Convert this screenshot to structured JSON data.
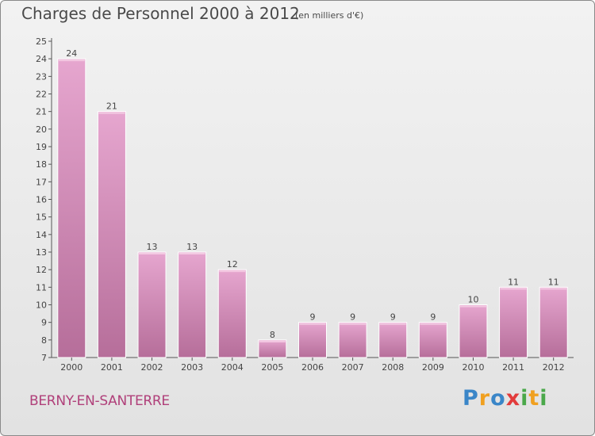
{
  "chart_data": {
    "type": "bar",
    "title": "Charges de Personnel 2000 à 2012",
    "subtitle": "(en milliers d'€)",
    "categories": [
      "2000",
      "2001",
      "2002",
      "2003",
      "2004",
      "2005",
      "2006",
      "2007",
      "2008",
      "2009",
      "2010",
      "2011",
      "2012"
    ],
    "values": [
      24,
      21,
      13,
      13,
      12,
      8,
      9,
      9,
      9,
      9,
      10,
      11,
      11
    ],
    "yticks": [
      7,
      8,
      9,
      10,
      11,
      12,
      13,
      14,
      15,
      16,
      17,
      18,
      19,
      20,
      21,
      22,
      23,
      24,
      25
    ],
    "ylim": [
      7,
      25
    ],
    "grid": false,
    "bar_color": "#d98fbb",
    "xlabel": "",
    "ylabel": ""
  },
  "footer": {
    "commune": "BERNY-EN-SANTERRE",
    "logo_text": "Proxiti",
    "logo_letters": [
      "P",
      "r",
      "o",
      "x",
      "i",
      "t",
      "i"
    ],
    "logo_colors": [
      "#3a86c8",
      "#f0a020",
      "#3a86c8",
      "#e23b3b",
      "#4aa84a",
      "#f0a020",
      "#4aa84a"
    ]
  },
  "colors": {
    "commune_text": "#b0407a",
    "title_text": "#4a4a4a"
  }
}
